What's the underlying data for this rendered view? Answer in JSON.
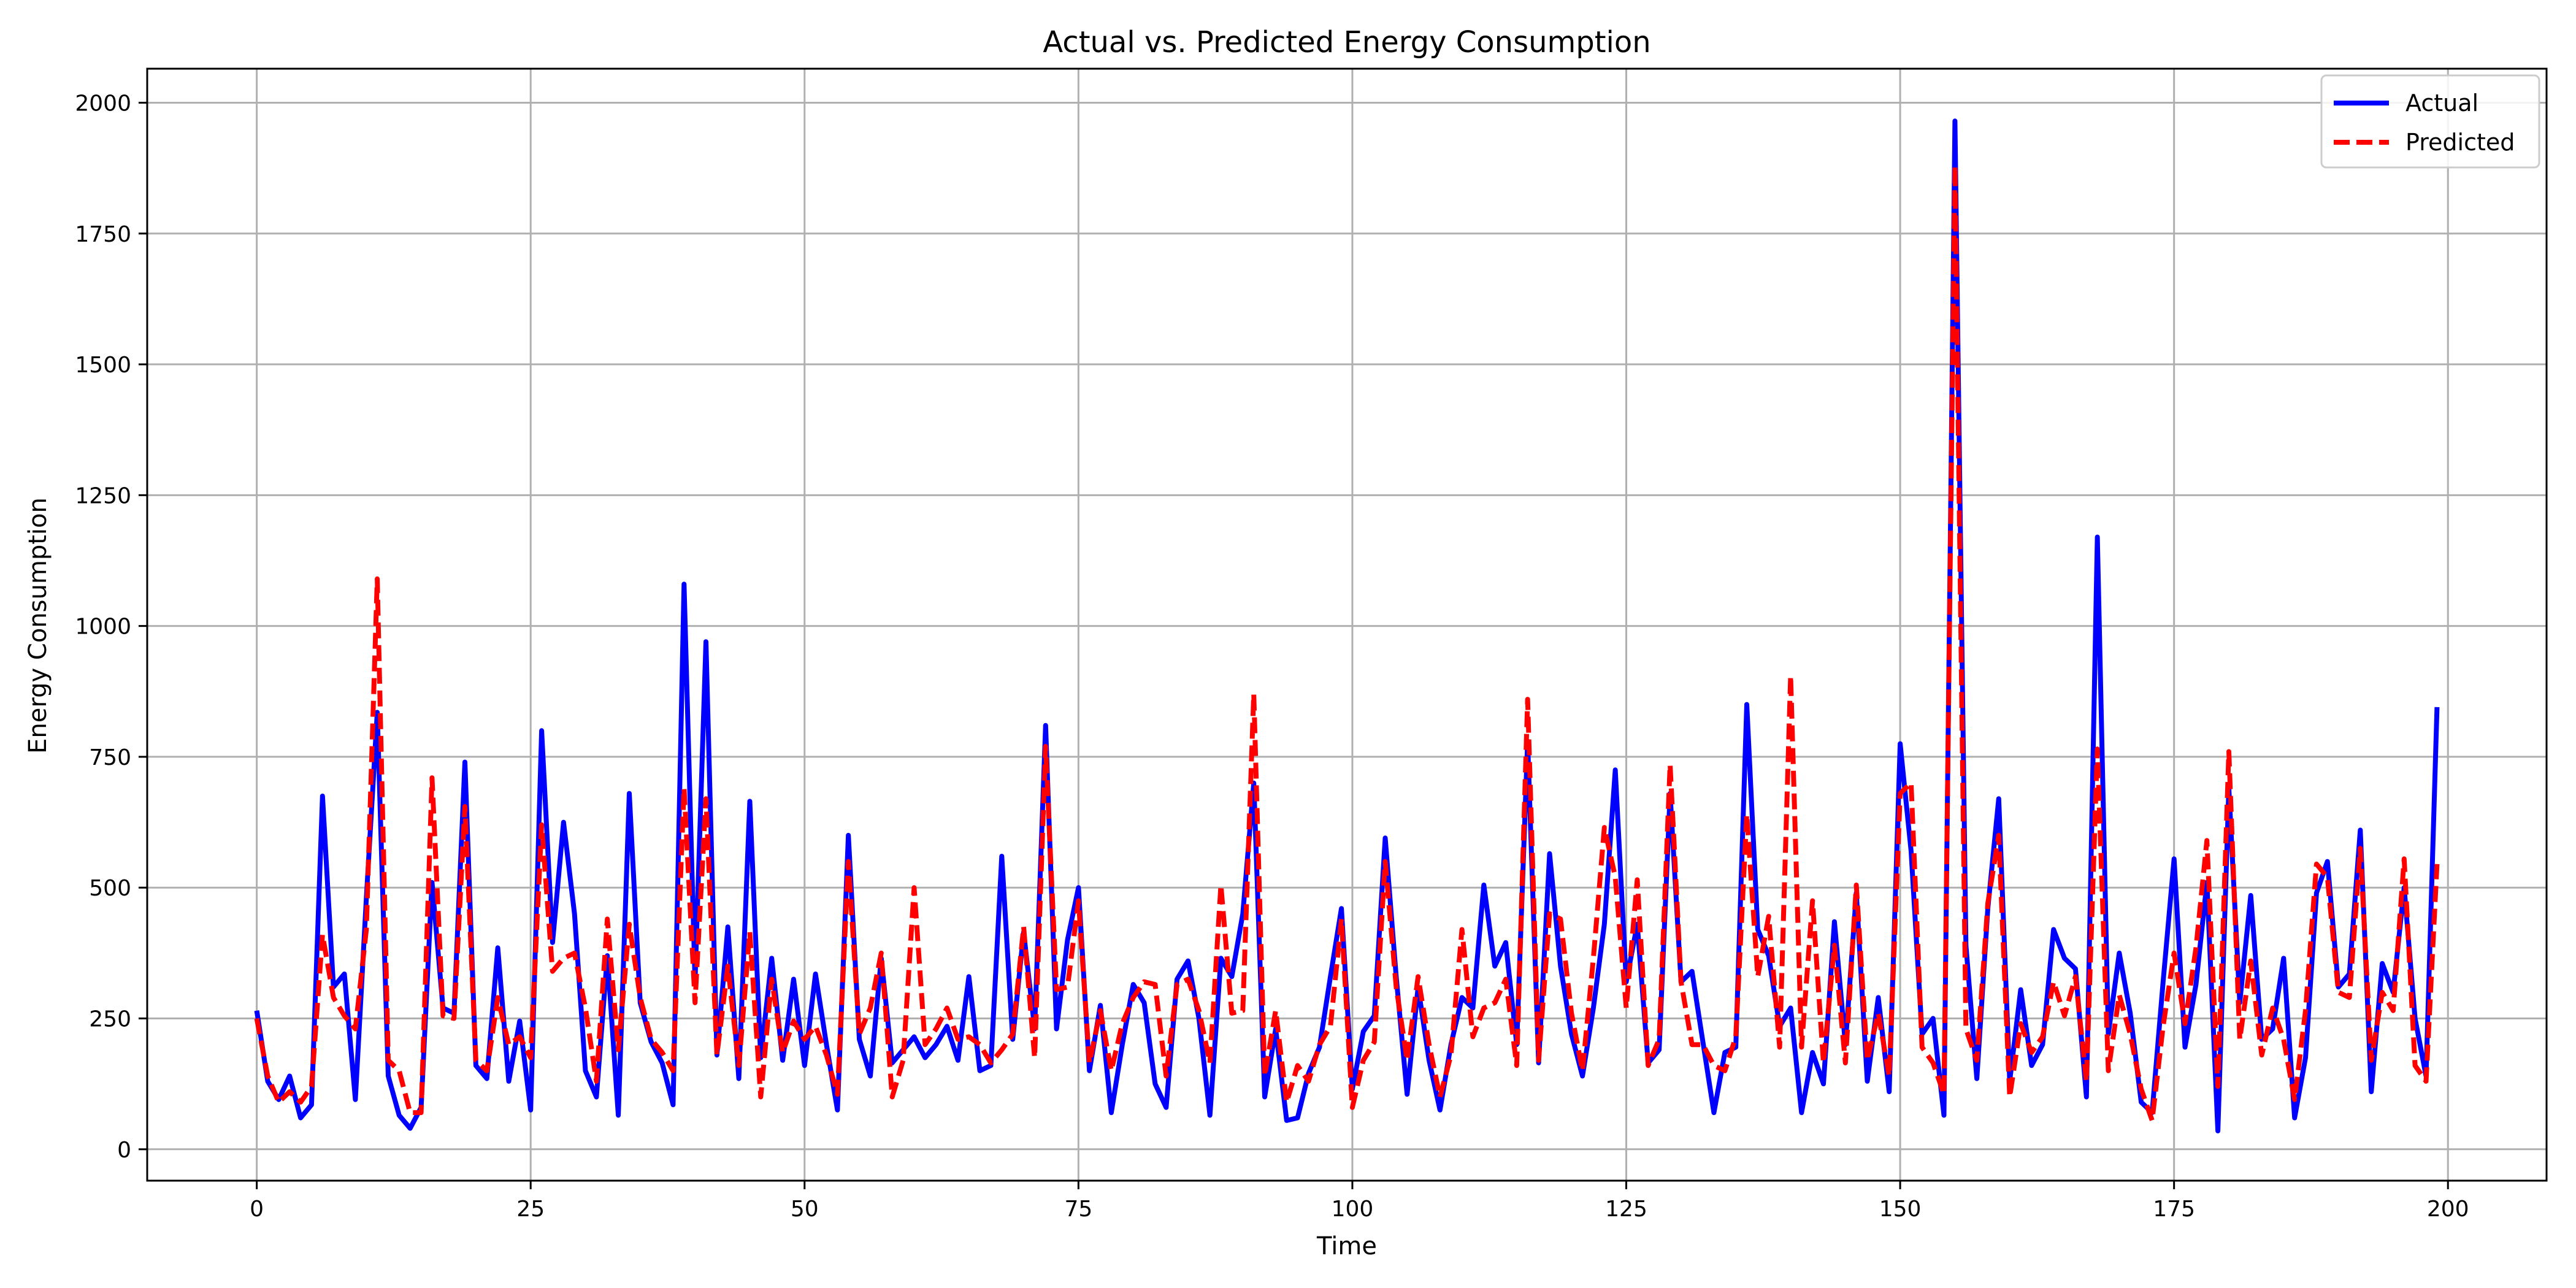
{
  "chart_data": {
    "type": "line",
    "title": "Actual vs. Predicted Energy Consumption",
    "xlabel": "Time",
    "ylabel": "Energy Consumption",
    "xlim": [
      -10,
      209
    ],
    "ylim": [
      -60,
      2065
    ],
    "xticks": [
      0,
      25,
      50,
      75,
      100,
      125,
      150,
      175,
      200
    ],
    "yticks": [
      0,
      250,
      500,
      750,
      1000,
      1250,
      1500,
      1750,
      2000
    ],
    "grid": true,
    "legend_position": "top-right",
    "series": [
      {
        "name": "Actual",
        "color": "#0000ff",
        "linestyle": "solid",
        "values": [
          265,
          130,
          95,
          140,
          60,
          85,
          675,
          310,
          335,
          95,
          480,
          835,
          140,
          65,
          40,
          80,
          510,
          270,
          260,
          740,
          160,
          135,
          385,
          130,
          245,
          75,
          800,
          395,
          625,
          450,
          150,
          100,
          370,
          65,
          680,
          280,
          205,
          165,
          85,
          1080,
          320,
          970,
          180,
          425,
          135,
          665,
          175,
          365,
          170,
          325,
          160,
          335,
          200,
          75,
          600,
          210,
          140,
          365,
          165,
          190,
          215,
          175,
          200,
          235,
          170,
          330,
          150,
          160,
          560,
          210,
          415,
          230,
          810,
          230,
          400,
          500,
          150,
          275,
          70,
          200,
          315,
          280,
          125,
          80,
          325,
          360,
          250,
          65,
          365,
          330,
          450,
          700,
          100,
          230,
          55,
          60,
          145,
          195,
          330,
          460,
          115,
          225,
          255,
          595,
          330,
          105,
          310,
          170,
          75,
          200,
          290,
          270,
          505,
          350,
          395,
          200,
          780,
          165,
          565,
          350,
          220,
          140,
          270,
          430,
          725,
          320,
          430,
          165,
          190,
          680,
          320,
          340,
          205,
          70,
          185,
          195,
          850,
          420,
          370,
          235,
          270,
          70,
          185,
          125,
          435,
          200,
          490,
          130,
          290,
          110,
          775,
          570,
          220,
          250,
          65,
          1965,
          390,
          135,
          460,
          670,
          130,
          305,
          160,
          200,
          420,
          365,
          345,
          100,
          1170,
          220,
          375,
          260,
          90,
          70,
          320,
          555,
          195,
          315,
          510,
          35,
          690,
          280,
          485,
          210,
          230,
          365,
          60,
          175,
          490,
          550,
          310,
          335,
          610,
          110,
          355,
          300,
          500,
          250,
          140,
          845
        ]
      },
      {
        "name": "Predicted",
        "color": "#ff0000",
        "linestyle": "dashed",
        "values": [
          250,
          140,
          90,
          110,
          90,
          120,
          410,
          290,
          255,
          230,
          420,
          1090,
          170,
          150,
          70,
          70,
          710,
          255,
          250,
          655,
          170,
          150,
          290,
          200,
          215,
          175,
          620,
          340,
          365,
          375,
          270,
          130,
          440,
          190,
          430,
          290,
          210,
          185,
          150,
          690,
          280,
          670,
          180,
          350,
          160,
          415,
          100,
          325,
          185,
          245,
          210,
          235,
          180,
          105,
          550,
          220,
          270,
          375,
          100,
          170,
          500,
          200,
          230,
          270,
          210,
          215,
          200,
          165,
          190,
          220,
          425,
          175,
          770,
          305,
          310,
          475,
          165,
          265,
          150,
          240,
          290,
          320,
          315,
          140,
          315,
          325,
          265,
          165,
          505,
          260,
          265,
          870,
          140,
          265,
          90,
          160,
          130,
          200,
          235,
          440,
          80,
          170,
          205,
          550,
          310,
          170,
          330,
          200,
          100,
          180,
          420,
          215,
          270,
          280,
          325,
          160,
          860,
          170,
          450,
          440,
          260,
          150,
          365,
          615,
          520,
          270,
          515,
          160,
          210,
          735,
          320,
          200,
          200,
          160,
          150,
          215,
          640,
          330,
          445,
          195,
          905,
          195,
          475,
          165,
          390,
          165,
          505,
          170,
          260,
          140,
          680,
          700,
          195,
          165,
          105,
          1880,
          230,
          170,
          470,
          600,
          100,
          240,
          185,
          215,
          320,
          255,
          330,
          130,
          765,
          150,
          295,
          220,
          115,
          55,
          235,
          375,
          240,
          385,
          590,
          120,
          760,
          210,
          360,
          180,
          270,
          210,
          95,
          265,
          545,
          520,
          300,
          290,
          575,
          170,
          300,
          265,
          555,
          160,
          130,
          545
        ]
      }
    ]
  }
}
